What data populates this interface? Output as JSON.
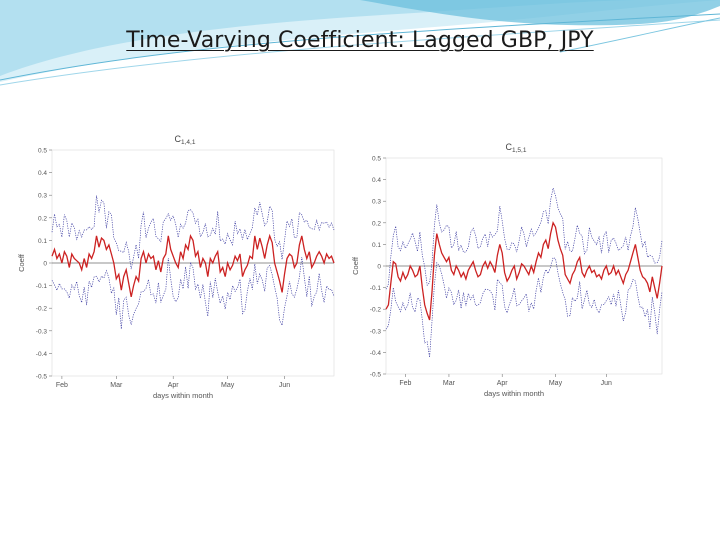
{
  "slide": {
    "title": "Time-Varying Coefficient: Lagged GBP, JPY"
  },
  "colors": {
    "coef_line": "#cc2222",
    "band_line": "#3a3aa0",
    "swoosh_dark": "#5fb6d6",
    "swoosh_light": "#a8dcee"
  },
  "chart_data": [
    {
      "type": "line",
      "title": "C",
      "title_sub": "1,4,1",
      "ylabel": "Coeff",
      "xlabel": "days within month",
      "ylim": [
        -0.5,
        0.5
      ],
      "yticks": [
        "0.5",
        "0.4",
        "0.3",
        "0.2",
        "0.1",
        "0",
        "-0.1",
        "-0.2",
        "-0.3",
        "-0.4",
        "-0.5"
      ],
      "xticks": [
        "Feb",
        "Mar",
        "Apr",
        "May",
        "Jun"
      ],
      "xtick_pos": [
        4,
        26,
        49,
        71,
        94
      ],
      "n": 115,
      "series": [
        {
          "values": [
            0.03,
            0.06,
            0.02,
            0.04,
            0.0,
            0.05,
            0.03,
            -0.02,
            0.04,
            0.02,
            0.01,
            0.0,
            -0.03,
            0.02,
            -0.02,
            0.04,
            0.02,
            0.05,
            0.12,
            0.07,
            0.11,
            0.1,
            0.06,
            0.08,
            0.04,
            0.0,
            -0.07,
            -0.05,
            -0.12,
            -0.06,
            -0.03,
            -0.09,
            -0.15,
            -0.1,
            -0.06,
            -0.08,
            0.02,
            0.05,
            0.0,
            0.04,
            0.02,
            0.03,
            -0.03,
            0.01,
            -0.04,
            0.02,
            0.04,
            0.12,
            0.06,
            0.03,
            0.0,
            -0.02,
            0.05,
            0.02,
            0.08,
            0.06,
            0.12,
            0.1,
            0.03,
            0.05,
            -0.02,
            0.02,
            0.0,
            -0.06,
            0.02,
            0.0,
            0.03,
            0.05,
            -0.04,
            -0.02,
            -0.06,
            0.0,
            -0.03,
            -0.01,
            0.03,
            0.01,
            0.04,
            -0.06,
            -0.03,
            -0.01,
            0.03,
            0.02,
            0.12,
            0.06,
            0.11,
            0.07,
            0.02,
            0.08,
            0.12,
            0.09,
            0.0,
            -0.04,
            -0.08,
            -0.13,
            -0.05,
            0.02,
            0.04,
            0.03,
            -0.02,
            0.0,
            0.08,
            0.12,
            0.06,
            0.02,
            0.05,
            -0.02,
            0.0,
            0.03,
            0.05,
            0.03,
            0.0,
            0.04,
            0.02,
            0.03,
            0.0
          ]
        }
      ]
    },
    {
      "type": "line",
      "title": "C",
      "title_sub": "1,5,1",
      "ylabel": "Coeff",
      "xlabel": "days within month",
      "ylim": [
        -0.5,
        0.5
      ],
      "yticks": [
        "0.5",
        "0.4",
        "0.3",
        "0.2",
        "0.1",
        "0",
        "-0.1",
        "-0.2",
        "-0.3",
        "-0.4",
        "-0.5"
      ],
      "xticks": [
        "Feb",
        "Mar",
        "Apr",
        "May",
        "Jun"
      ],
      "xtick_pos": [
        8,
        26,
        48,
        70,
        91
      ],
      "n": 115,
      "series": [
        {
          "values": [
            -0.2,
            -0.18,
            -0.08,
            0.02,
            0.01,
            -0.05,
            -0.07,
            -0.03,
            -0.06,
            -0.04,
            0.0,
            -0.02,
            -0.05,
            -0.04,
            0.0,
            -0.1,
            -0.18,
            -0.22,
            -0.25,
            -0.12,
            0.05,
            0.15,
            0.1,
            0.06,
            0.04,
            0.02,
            0.04,
            -0.02,
            -0.04,
            0.0,
            -0.02,
            -0.05,
            -0.03,
            -0.06,
            -0.02,
            0.0,
            0.02,
            -0.02,
            -0.05,
            -0.04,
            0.0,
            0.02,
            -0.01,
            0.02,
            0.0,
            -0.03,
            0.05,
            0.1,
            0.06,
            -0.03,
            -0.07,
            -0.05,
            -0.02,
            0.0,
            -0.06,
            -0.03,
            0.01,
            0.0,
            -0.02,
            -0.04,
            0.0,
            -0.03,
            0.02,
            0.06,
            0.04,
            0.1,
            0.12,
            0.08,
            0.15,
            0.2,
            0.18,
            0.12,
            0.08,
            0.05,
            -0.04,
            -0.06,
            -0.08,
            -0.04,
            -0.02,
            0.02,
            0.04,
            -0.03,
            -0.05,
            -0.02,
            0.0,
            -0.03,
            -0.02,
            -0.05,
            -0.04,
            -0.06,
            -0.02,
            0.0,
            -0.04,
            -0.03,
            0.0,
            -0.04,
            -0.02,
            -0.05,
            -0.08,
            -0.04,
            -0.02,
            0.02,
            0.06,
            0.1,
            0.04,
            -0.02,
            -0.05,
            -0.06,
            -0.08,
            -0.12,
            -0.05,
            -0.1,
            -0.15,
            -0.08,
            0.0
          ]
        }
      ]
    }
  ]
}
